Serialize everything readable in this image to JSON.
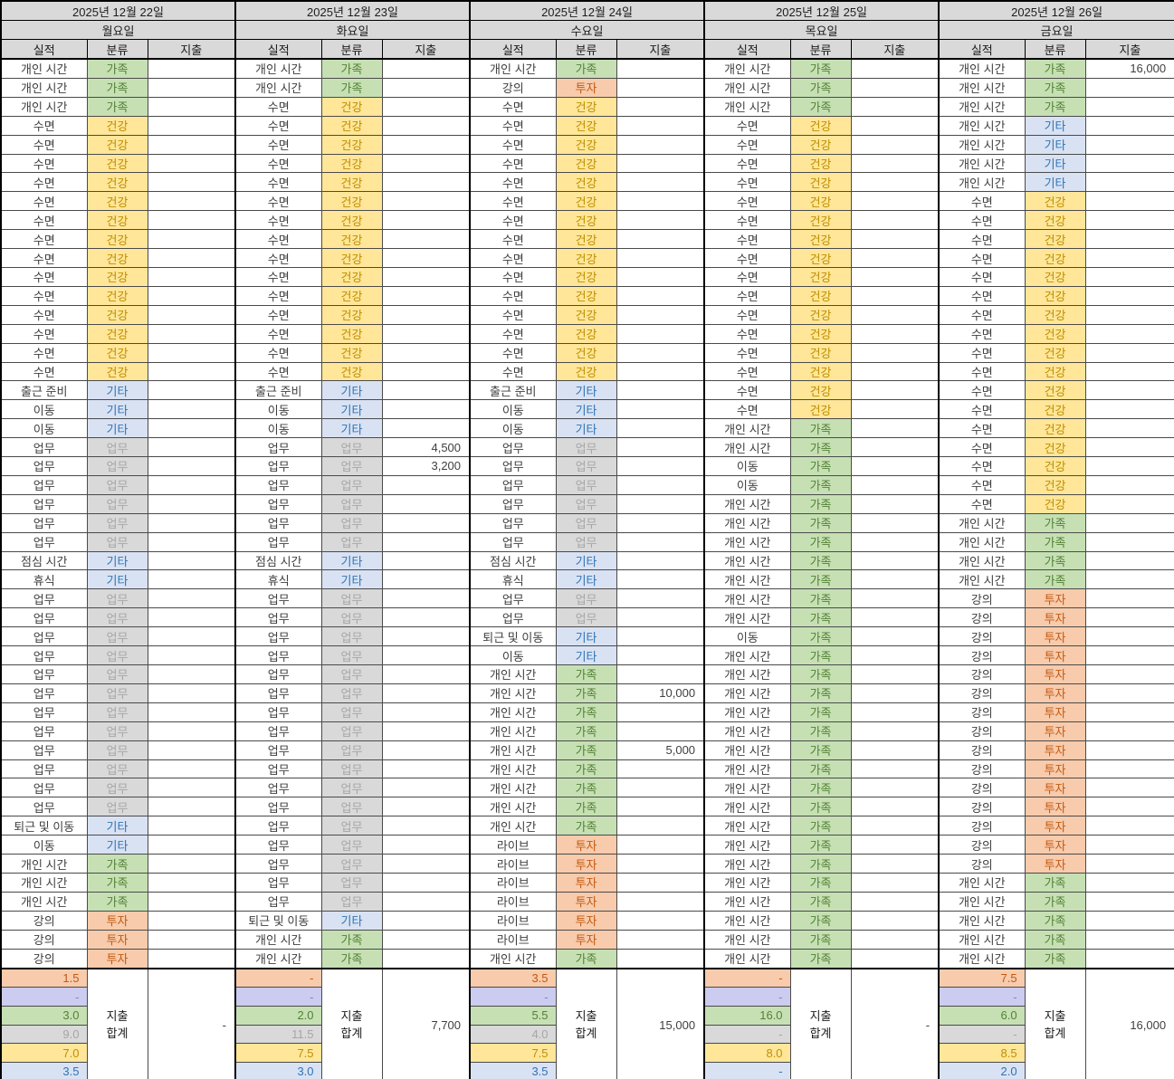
{
  "columns": {
    "performance": "실적",
    "category": "분류",
    "expense": "지출"
  },
  "summary_label_line1": "지출",
  "summary_label_line2": "합계",
  "colors": {
    "header_bg": "#d9d9d9",
    "grid": "#4a4a4a",
    "outer_border": "#000000"
  },
  "categories": {
    "fam": {
      "label": "가족",
      "bg": "#c6e0b4",
      "text": "#538135"
    },
    "health": {
      "label": "건강",
      "bg": "#ffe699",
      "text": "#bf8f00"
    },
    "etc": {
      "label": "기타",
      "bg": "#d9e2f3",
      "text": "#2e74b5"
    },
    "work": {
      "label": "업무",
      "bg": "#d9d9d9",
      "text": "#a6a6a6"
    },
    "invest": {
      "label": "투자",
      "bg": "#f7cbac",
      "text": "#c45911"
    },
    "lavender": {
      "label": "",
      "bg": "#ccccf0",
      "text": "#8585c2"
    }
  },
  "summary_order": [
    "invest",
    "lavender",
    "fam",
    "work",
    "health",
    "etc"
  ],
  "days": [
    {
      "date": "2025년 12월 22일",
      "weekday": "월요일",
      "rows": [
        [
          "개인 시간",
          "fam"
        ],
        [
          "개인 시간",
          "fam"
        ],
        [
          "개인 시간",
          "fam"
        ],
        [
          "수면",
          "health"
        ],
        [
          "수면",
          "health"
        ],
        [
          "수면",
          "health"
        ],
        [
          "수면",
          "health"
        ],
        [
          "수면",
          "health"
        ],
        [
          "수면",
          "health"
        ],
        [
          "수면",
          "health"
        ],
        [
          "수면",
          "health"
        ],
        [
          "수면",
          "health"
        ],
        [
          "수면",
          "health"
        ],
        [
          "수면",
          "health"
        ],
        [
          "수면",
          "health"
        ],
        [
          "수면",
          "health"
        ],
        [
          "수면",
          "health"
        ],
        [
          "출근 준비",
          "etc"
        ],
        [
          "이동",
          "etc"
        ],
        [
          "이동",
          "etc"
        ],
        [
          "업무",
          "work"
        ],
        [
          "업무",
          "work"
        ],
        [
          "업무",
          "work"
        ],
        [
          "업무",
          "work"
        ],
        [
          "업무",
          "work"
        ],
        [
          "업무",
          "work"
        ],
        [
          "점심 시간",
          "etc"
        ],
        [
          "휴식",
          "etc"
        ],
        [
          "업무",
          "work"
        ],
        [
          "업무",
          "work"
        ],
        [
          "업무",
          "work"
        ],
        [
          "업무",
          "work"
        ],
        [
          "업무",
          "work"
        ],
        [
          "업무",
          "work"
        ],
        [
          "업무",
          "work"
        ],
        [
          "업무",
          "work"
        ],
        [
          "업무",
          "work"
        ],
        [
          "업무",
          "work"
        ],
        [
          "업무",
          "work"
        ],
        [
          "업무",
          "work"
        ],
        [
          "퇴근 및 이동",
          "etc"
        ],
        [
          "이동",
          "etc"
        ],
        [
          "개인 시간",
          "fam"
        ],
        [
          "개인 시간",
          "fam"
        ],
        [
          "개인 시간",
          "fam"
        ],
        [
          "강의",
          "invest"
        ],
        [
          "강의",
          "invest"
        ],
        [
          "강의",
          "invest"
        ]
      ],
      "summary": [
        "1.5",
        "-",
        "3.0",
        "9.0",
        "7.0",
        "3.5"
      ],
      "expense_total": "-"
    },
    {
      "date": "2025년 12월 23일",
      "weekday": "화요일",
      "rows": [
        [
          "개인 시간",
          "fam"
        ],
        [
          "개인 시간",
          "fam"
        ],
        [
          "수면",
          "health"
        ],
        [
          "수면",
          "health"
        ],
        [
          "수면",
          "health"
        ],
        [
          "수면",
          "health"
        ],
        [
          "수면",
          "health"
        ],
        [
          "수면",
          "health"
        ],
        [
          "수면",
          "health"
        ],
        [
          "수면",
          "health"
        ],
        [
          "수면",
          "health"
        ],
        [
          "수면",
          "health"
        ],
        [
          "수면",
          "health"
        ],
        [
          "수면",
          "health"
        ],
        [
          "수면",
          "health"
        ],
        [
          "수면",
          "health"
        ],
        [
          "수면",
          "health"
        ],
        [
          "출근 준비",
          "etc"
        ],
        [
          "이동",
          "etc"
        ],
        [
          "이동",
          "etc"
        ],
        [
          "업무",
          "work",
          "4,500"
        ],
        [
          "업무",
          "work",
          "3,200"
        ],
        [
          "업무",
          "work"
        ],
        [
          "업무",
          "work"
        ],
        [
          "업무",
          "work"
        ],
        [
          "업무",
          "work"
        ],
        [
          "점심 시간",
          "etc"
        ],
        [
          "휴식",
          "etc"
        ],
        [
          "업무",
          "work"
        ],
        [
          "업무",
          "work"
        ],
        [
          "업무",
          "work"
        ],
        [
          "업무",
          "work"
        ],
        [
          "업무",
          "work"
        ],
        [
          "업무",
          "work"
        ],
        [
          "업무",
          "work"
        ],
        [
          "업무",
          "work"
        ],
        [
          "업무",
          "work"
        ],
        [
          "업무",
          "work"
        ],
        [
          "업무",
          "work"
        ],
        [
          "업무",
          "work"
        ],
        [
          "업무",
          "work"
        ],
        [
          "업무",
          "work"
        ],
        [
          "업무",
          "work"
        ],
        [
          "업무",
          "work"
        ],
        [
          "업무",
          "work"
        ],
        [
          "퇴근 및 이동",
          "etc"
        ],
        [
          "개인 시간",
          "fam"
        ],
        [
          "개인 시간",
          "fam"
        ]
      ],
      "summary": [
        "-",
        "-",
        "2.0",
        "11.5",
        "7.5",
        "3.0"
      ],
      "expense_total": "7,700"
    },
    {
      "date": "2025년 12월 24일",
      "weekday": "수요일",
      "rows": [
        [
          "개인 시간",
          "fam"
        ],
        [
          "강의",
          "invest"
        ],
        [
          "수면",
          "health"
        ],
        [
          "수면",
          "health"
        ],
        [
          "수면",
          "health"
        ],
        [
          "수면",
          "health"
        ],
        [
          "수면",
          "health"
        ],
        [
          "수면",
          "health"
        ],
        [
          "수면",
          "health"
        ],
        [
          "수면",
          "health"
        ],
        [
          "수면",
          "health"
        ],
        [
          "수면",
          "health"
        ],
        [
          "수면",
          "health"
        ],
        [
          "수면",
          "health"
        ],
        [
          "수면",
          "health"
        ],
        [
          "수면",
          "health"
        ],
        [
          "수면",
          "health"
        ],
        [
          "출근 준비",
          "etc"
        ],
        [
          "이동",
          "etc"
        ],
        [
          "이동",
          "etc"
        ],
        [
          "업무",
          "work"
        ],
        [
          "업무",
          "work"
        ],
        [
          "업무",
          "work"
        ],
        [
          "업무",
          "work"
        ],
        [
          "업무",
          "work"
        ],
        [
          "업무",
          "work"
        ],
        [
          "점심 시간",
          "etc"
        ],
        [
          "휴식",
          "etc"
        ],
        [
          "업무",
          "work"
        ],
        [
          "업무",
          "work"
        ],
        [
          "퇴근 및 이동",
          "etc"
        ],
        [
          "이동",
          "etc"
        ],
        [
          "개인 시간",
          "fam"
        ],
        [
          "개인 시간",
          "fam",
          "10,000"
        ],
        [
          "개인 시간",
          "fam"
        ],
        [
          "개인 시간",
          "fam"
        ],
        [
          "개인 시간",
          "fam",
          "5,000"
        ],
        [
          "개인 시간",
          "fam"
        ],
        [
          "개인 시간",
          "fam"
        ],
        [
          "개인 시간",
          "fam"
        ],
        [
          "개인 시간",
          "fam"
        ],
        [
          "라이브",
          "invest"
        ],
        [
          "라이브",
          "invest"
        ],
        [
          "라이브",
          "invest"
        ],
        [
          "라이브",
          "invest"
        ],
        [
          "라이브",
          "invest"
        ],
        [
          "라이브",
          "invest"
        ],
        [
          "개인 시간",
          "fam"
        ]
      ],
      "summary": [
        "3.5",
        "-",
        "5.5",
        "4.0",
        "7.5",
        "3.5"
      ],
      "expense_total": "15,000"
    },
    {
      "date": "2025년 12월 25일",
      "weekday": "목요일",
      "rows": [
        [
          "개인 시간",
          "fam"
        ],
        [
          "개인 시간",
          "fam"
        ],
        [
          "개인 시간",
          "fam"
        ],
        [
          "수면",
          "health"
        ],
        [
          "수면",
          "health"
        ],
        [
          "수면",
          "health"
        ],
        [
          "수면",
          "health"
        ],
        [
          "수면",
          "health"
        ],
        [
          "수면",
          "health"
        ],
        [
          "수면",
          "health"
        ],
        [
          "수면",
          "health"
        ],
        [
          "수면",
          "health"
        ],
        [
          "수면",
          "health"
        ],
        [
          "수면",
          "health"
        ],
        [
          "수면",
          "health"
        ],
        [
          "수면",
          "health"
        ],
        [
          "수면",
          "health"
        ],
        [
          "수면",
          "health"
        ],
        [
          "수면",
          "health"
        ],
        [
          "개인 시간",
          "fam"
        ],
        [
          "개인 시간",
          "fam"
        ],
        [
          "이동",
          "fam"
        ],
        [
          "이동",
          "fam"
        ],
        [
          "개인 시간",
          "fam"
        ],
        [
          "개인 시간",
          "fam"
        ],
        [
          "개인 시간",
          "fam"
        ],
        [
          "개인 시간",
          "fam"
        ],
        [
          "개인 시간",
          "fam"
        ],
        [
          "개인 시간",
          "fam"
        ],
        [
          "개인 시간",
          "fam"
        ],
        [
          "이동",
          "fam"
        ],
        [
          "개인 시간",
          "fam"
        ],
        [
          "개인 시간",
          "fam"
        ],
        [
          "개인 시간",
          "fam"
        ],
        [
          "개인 시간",
          "fam"
        ],
        [
          "개인 시간",
          "fam"
        ],
        [
          "개인 시간",
          "fam"
        ],
        [
          "개인 시간",
          "fam"
        ],
        [
          "개인 시간",
          "fam"
        ],
        [
          "개인 시간",
          "fam"
        ],
        [
          "개인 시간",
          "fam"
        ],
        [
          "개인 시간",
          "fam"
        ],
        [
          "개인 시간",
          "fam"
        ],
        [
          "개인 시간",
          "fam"
        ],
        [
          "개인 시간",
          "fam"
        ],
        [
          "개인 시간",
          "fam"
        ],
        [
          "개인 시간",
          "fam"
        ],
        [
          "개인 시간",
          "fam"
        ]
      ],
      "summary": [
        "-",
        "-",
        "16.0",
        "-",
        "8.0",
        "-"
      ],
      "expense_total": "-"
    },
    {
      "date": "2025년 12월 26일",
      "weekday": "금요일",
      "rows": [
        [
          "개인 시간",
          "fam",
          "16,000"
        ],
        [
          "개인 시간",
          "fam"
        ],
        [
          "개인 시간",
          "fam"
        ],
        [
          "개인 시간",
          "etc"
        ],
        [
          "개인 시간",
          "etc"
        ],
        [
          "개인 시간",
          "etc"
        ],
        [
          "개인 시간",
          "etc"
        ],
        [
          "수면",
          "health"
        ],
        [
          "수면",
          "health"
        ],
        [
          "수면",
          "health"
        ],
        [
          "수면",
          "health"
        ],
        [
          "수면",
          "health"
        ],
        [
          "수면",
          "health"
        ],
        [
          "수면",
          "health"
        ],
        [
          "수면",
          "health"
        ],
        [
          "수면",
          "health"
        ],
        [
          "수면",
          "health"
        ],
        [
          "수면",
          "health"
        ],
        [
          "수면",
          "health"
        ],
        [
          "수면",
          "health"
        ],
        [
          "수면",
          "health"
        ],
        [
          "수면",
          "health"
        ],
        [
          "수면",
          "health"
        ],
        [
          "수면",
          "health"
        ],
        [
          "개인 시간",
          "fam"
        ],
        [
          "개인 시간",
          "fam"
        ],
        [
          "개인 시간",
          "fam"
        ],
        [
          "개인 시간",
          "fam"
        ],
        [
          "강의",
          "invest"
        ],
        [
          "강의",
          "invest"
        ],
        [
          "강의",
          "invest"
        ],
        [
          "강의",
          "invest"
        ],
        [
          "강의",
          "invest"
        ],
        [
          "강의",
          "invest"
        ],
        [
          "강의",
          "invest"
        ],
        [
          "강의",
          "invest"
        ],
        [
          "강의",
          "invest"
        ],
        [
          "강의",
          "invest"
        ],
        [
          "강의",
          "invest"
        ],
        [
          "강의",
          "invest"
        ],
        [
          "강의",
          "invest"
        ],
        [
          "강의",
          "invest"
        ],
        [
          "강의",
          "invest"
        ],
        [
          "개인 시간",
          "fam"
        ],
        [
          "개인 시간",
          "fam"
        ],
        [
          "개인 시간",
          "fam"
        ],
        [
          "개인 시간",
          "fam"
        ],
        [
          "개인 시간",
          "fam"
        ]
      ],
      "summary": [
        "7.5",
        "-",
        "6.0",
        "-",
        "8.5",
        "2.0"
      ],
      "expense_total": "16,000"
    }
  ]
}
